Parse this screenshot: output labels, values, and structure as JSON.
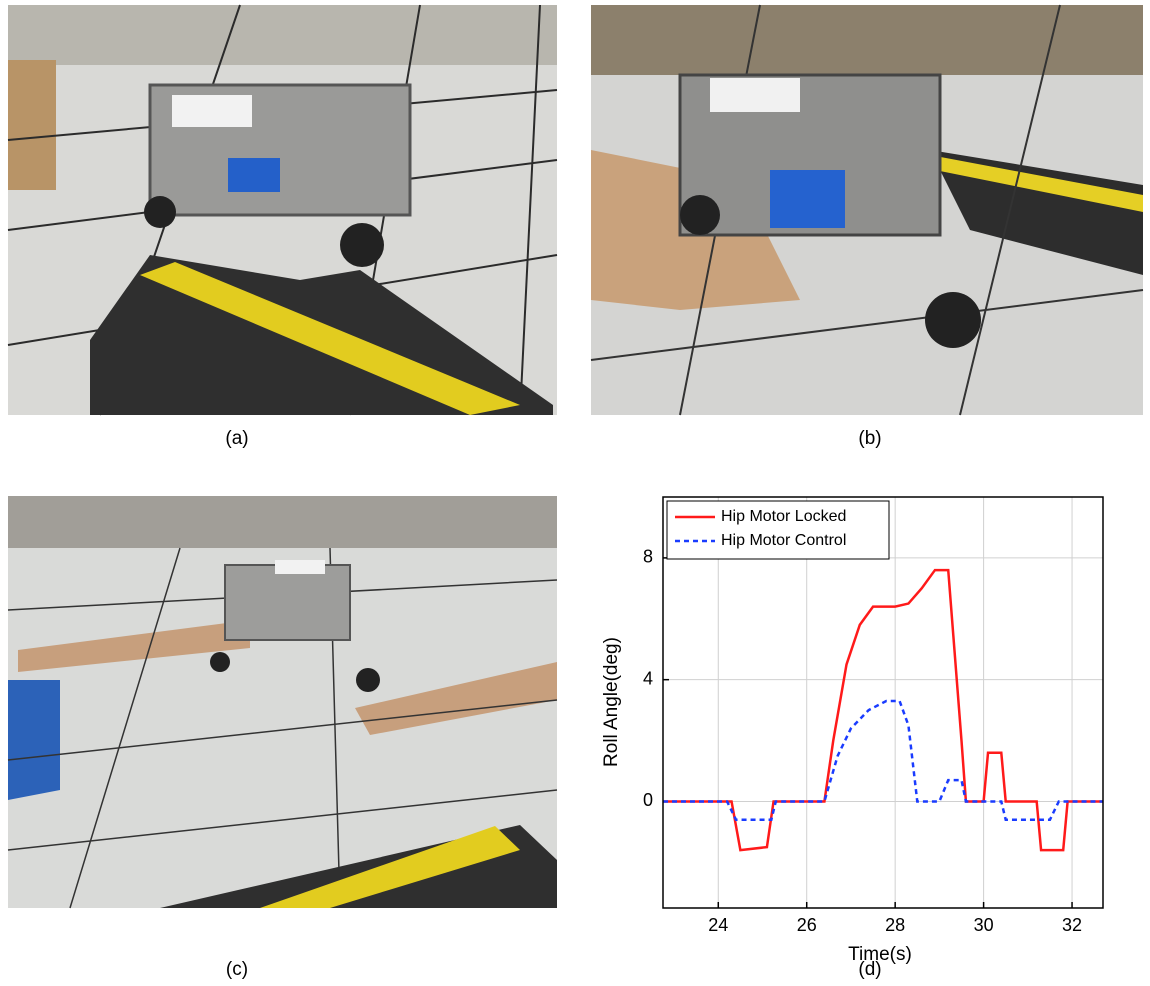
{
  "panels": [
    {
      "caption": "(a)"
    },
    {
      "caption": "(b)"
    },
    {
      "caption": "(c)"
    },
    {
      "caption": "(d)"
    }
  ],
  "chart_data": {
    "type": "line",
    "x_label": "Time(s)",
    "y_label": "Roll Angle(deg)",
    "xlim": [
      22.75,
      32.7
    ],
    "ylim": [
      -3.5,
      10
    ],
    "xticks": [
      24,
      26,
      28,
      30,
      32
    ],
    "yticks": [
      0,
      4,
      8
    ],
    "grid": true,
    "legend": "upper left",
    "series": [
      {
        "name": "Hip Motor Locked",
        "color": "#ff1a1a",
        "line_style": "solid",
        "x": [
          22.75,
          24.3,
          24.5,
          25.1,
          25.25,
          26.4,
          26.6,
          26.9,
          27.2,
          27.5,
          28.0,
          28.3,
          28.6,
          28.9,
          29.2,
          29.5,
          29.6,
          30.0,
          30.1,
          30.4,
          30.5,
          31.2,
          31.3,
          31.8,
          31.9,
          32.7
        ],
        "values": [
          0,
          0,
          -1.6,
          -1.5,
          0,
          0,
          2,
          4.5,
          5.8,
          6.4,
          6.4,
          6.5,
          7,
          7.6,
          7.6,
          2,
          0,
          0,
          1.6,
          1.6,
          0,
          0,
          -1.6,
          -1.6,
          0,
          0
        ]
      },
      {
        "name": "Hip Motor Control",
        "color": "#1a3cff",
        "line_style": "dashed",
        "x": [
          22.75,
          24.2,
          24.4,
          25.2,
          25.3,
          26.4,
          26.7,
          27.0,
          27.4,
          27.8,
          28.1,
          28.3,
          28.5,
          29.0,
          29.2,
          29.5,
          29.6,
          30.4,
          30.5,
          31.5,
          31.7,
          32.7
        ],
        "values": [
          0,
          0,
          -0.6,
          -0.6,
          0,
          0,
          1.5,
          2.4,
          3.0,
          3.3,
          3.3,
          2.5,
          0,
          0,
          0.7,
          0.7,
          0,
          0,
          -0.6,
          -0.6,
          0,
          0
        ]
      }
    ]
  }
}
